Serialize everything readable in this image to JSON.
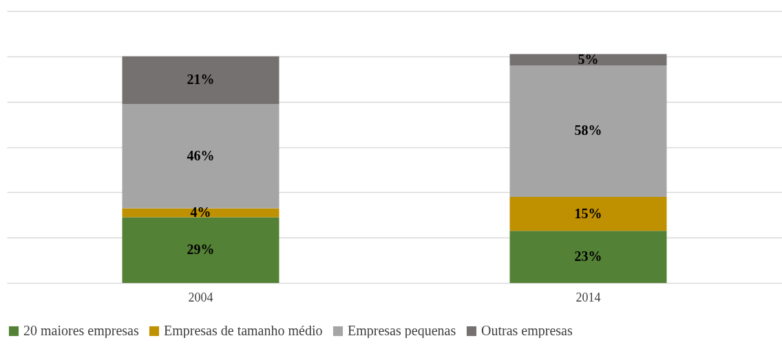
{
  "chart_data": {
    "type": "bar",
    "stacked": true,
    "categories": [
      "2004",
      "2014"
    ],
    "series": [
      {
        "name": "20 maiores empresas",
        "color": "#538135",
        "values": [
          29,
          23
        ],
        "value_labels": [
          "29%",
          "23%"
        ]
      },
      {
        "name": "Empresas de tamanho médio",
        "color": "#bf9000",
        "values": [
          4,
          15
        ],
        "value_labels": [
          "4%",
          "15%"
        ]
      },
      {
        "name": "Empresas pequenas",
        "color": "#a5a5a5",
        "values": [
          46,
          58
        ],
        "value_labels": [
          "46%",
          "58%"
        ]
      },
      {
        "name": "Outras empresas",
        "color": "#767171",
        "values": [
          21,
          5
        ],
        "value_labels": [
          "21%",
          "5%"
        ]
      }
    ],
    "ylim": [
      0,
      120
    ],
    "yticks": [
      {
        "value": 0,
        "label": null
      },
      {
        "value": 20,
        "label": null
      },
      {
        "value": 40,
        "label": null
      },
      {
        "value": 60,
        "label": null
      },
      {
        "value": 80,
        "label": null
      },
      {
        "value": 100,
        "label": null
      },
      {
        "value": 120,
        "label": null
      }
    ],
    "grid": "y",
    "tick_labels": "x",
    "legend": "bottom"
  }
}
